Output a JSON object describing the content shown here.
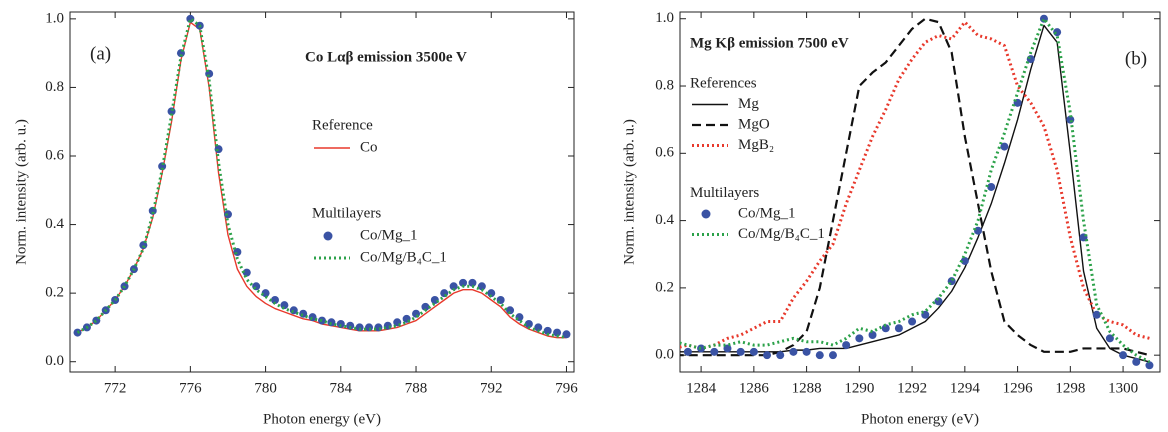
{
  "chart_data": [
    {
      "type": "line",
      "label": "(a)",
      "title": "Co Lαβ emission 3500e V",
      "x_label": "Photon energy (eV)",
      "y_label": "Norm. intensity (arb. u.)",
      "xlim": [
        769.6,
        796.4
      ],
      "ylim": [
        -0.03,
        1.02
      ],
      "xticks": [
        772,
        776,
        780,
        784,
        788,
        792,
        796
      ],
      "yticks": [
        {
          "value": 0,
          "label": "0.0"
        },
        0.2,
        0.4,
        0.6,
        0.8,
        {
          "value": 1,
          "label": "1.0"
        }
      ],
      "x": [
        770,
        770.5,
        771,
        771.5,
        772,
        772.5,
        773,
        773.5,
        774,
        774.5,
        775,
        775.5,
        776,
        776.5,
        777,
        777.5,
        778,
        778.5,
        779,
        779.5,
        780,
        780.5,
        781,
        781.5,
        782,
        782.5,
        783,
        783.5,
        784,
        784.5,
        785,
        785.5,
        786,
        786.5,
        787,
        787.5,
        788,
        788.5,
        789,
        789.5,
        790,
        790.5,
        791,
        791.5,
        792,
        792.5,
        793,
        793.5,
        794,
        794.5,
        795,
        795.5,
        796
      ],
      "series_groups": [
        {
          "name": "Reference",
          "series": [
            {
              "name": "Co",
              "style": "line",
              "color": "#e8392c",
              "values": [
                0.085,
                0.1,
                0.12,
                0.15,
                0.18,
                0.22,
                0.27,
                0.33,
                0.42,
                0.55,
                0.7,
                0.88,
                0.99,
                0.97,
                0.8,
                0.55,
                0.37,
                0.27,
                0.22,
                0.19,
                0.17,
                0.155,
                0.145,
                0.135,
                0.125,
                0.12,
                0.11,
                0.105,
                0.1,
                0.095,
                0.09,
                0.09,
                0.09,
                0.095,
                0.1,
                0.11,
                0.12,
                0.14,
                0.16,
                0.18,
                0.2,
                0.21,
                0.21,
                0.2,
                0.18,
                0.16,
                0.13,
                0.11,
                0.095,
                0.085,
                0.075,
                0.07,
                0.07
              ]
            }
          ]
        },
        {
          "name": "Multilayers",
          "series": [
            {
              "name": "Co/Mg_1",
              "style": "dots",
              "color": "#3a53a4",
              "values": [
                0.085,
                0.1,
                0.12,
                0.15,
                0.18,
                0.22,
                0.27,
                0.34,
                0.44,
                0.57,
                0.73,
                0.9,
                1.0,
                0.98,
                0.84,
                0.62,
                0.43,
                0.32,
                0.26,
                0.22,
                0.2,
                0.18,
                0.165,
                0.15,
                0.14,
                0.13,
                0.12,
                0.115,
                0.11,
                0.105,
                0.1,
                0.1,
                0.1,
                0.105,
                0.115,
                0.125,
                0.14,
                0.16,
                0.18,
                0.2,
                0.22,
                0.23,
                0.23,
                0.22,
                0.2,
                0.18,
                0.15,
                0.13,
                0.11,
                0.1,
                0.09,
                0.085,
                0.08
              ]
            },
            {
              "name": "Co/Mg/B₄C_1",
              "style": "dotted",
              "color": "#2ca24a",
              "values": [
                0.085,
                0.1,
                0.12,
                0.15,
                0.18,
                0.22,
                0.27,
                0.33,
                0.43,
                0.56,
                0.72,
                0.89,
                1.0,
                0.98,
                0.82,
                0.58,
                0.4,
                0.3,
                0.24,
                0.21,
                0.19,
                0.17,
                0.155,
                0.145,
                0.135,
                0.125,
                0.12,
                0.11,
                0.105,
                0.1,
                0.095,
                0.095,
                0.095,
                0.1,
                0.105,
                0.115,
                0.13,
                0.15,
                0.17,
                0.19,
                0.21,
                0.22,
                0.22,
                0.21,
                0.19,
                0.17,
                0.14,
                0.12,
                0.1,
                0.09,
                0.08,
                0.075,
                0.07
              ]
            }
          ]
        }
      ]
    },
    {
      "type": "line",
      "label": "(b)",
      "title": "Mg Kβ emission 7500 eV",
      "x_label": "Photon energy (eV)",
      "y_label": "Norm. intensity (arb. u.)",
      "xlim": [
        1283.2,
        1301.4
      ],
      "ylim": [
        -0.05,
        1.02
      ],
      "xticks": [
        1284,
        1286,
        1288,
        1290,
        1292,
        1294,
        1296,
        1298,
        1300
      ],
      "yticks": [
        {
          "value": 0,
          "label": "0.0"
        },
        0.2,
        0.4,
        0.6,
        0.8,
        {
          "value": 1,
          "label": "1.0"
        }
      ],
      "x": [
        1283,
        1283.5,
        1284,
        1284.5,
        1285,
        1285.5,
        1286,
        1286.5,
        1287,
        1287.5,
        1288,
        1288.5,
        1289,
        1289.5,
        1290,
        1290.5,
        1291,
        1291.5,
        1292,
        1292.5,
        1293,
        1293.5,
        1294,
        1294.5,
        1295,
        1295.5,
        1296,
        1296.5,
        1297,
        1297.5,
        1298,
        1298.5,
        1299,
        1299.5,
        1300,
        1300.5,
        1301
      ],
      "series_groups": [
        {
          "name": "References",
          "series": [
            {
              "name": "Mg",
              "style": "line",
              "color": "#111111",
              "values": [
                0.01,
                0.01,
                0.01,
                0.01,
                0.01,
                0.01,
                0.01,
                0.01,
                0.01,
                0.015,
                0.015,
                0.02,
                0.02,
                0.02,
                0.03,
                0.04,
                0.05,
                0.06,
                0.08,
                0.1,
                0.14,
                0.19,
                0.26,
                0.35,
                0.45,
                0.57,
                0.7,
                0.85,
                0.98,
                0.93,
                0.6,
                0.25,
                0.08,
                0.02,
                0,
                -0.01,
                -0.02
              ]
            },
            {
              "name": "MgO",
              "style": "dashed",
              "color": "#111111",
              "values": [
                0,
                0,
                0,
                0,
                0,
                0,
                0,
                0,
                0.01,
                0.03,
                0.07,
                0.2,
                0.4,
                0.6,
                0.8,
                0.84,
                0.87,
                0.92,
                0.97,
                1.0,
                0.99,
                0.9,
                0.65,
                0.45,
                0.25,
                0.1,
                0.06,
                0.03,
                0.01,
                0.01,
                0.01,
                0.02,
                0.02,
                0.02,
                0.02,
                0.01,
                0
              ]
            },
            {
              "name": "MgB₂",
              "style": "dotted",
              "color": "#e8392c",
              "values": [
                0.02,
                0.03,
                0.02,
                0.03,
                0.05,
                0.06,
                0.08,
                0.1,
                0.1,
                0.17,
                0.22,
                0.28,
                0.33,
                0.45,
                0.55,
                0.65,
                0.73,
                0.82,
                0.88,
                0.93,
                0.95,
                0.94,
                0.99,
                0.95,
                0.94,
                0.92,
                0.8,
                0.75,
                0.68,
                0.55,
                0.35,
                0.2,
                0.12,
                0.1,
                0.09,
                0.06,
                0.05
              ]
            }
          ]
        },
        {
          "name": "Multilayers",
          "series": [
            {
              "name": "Co/Mg_1",
              "style": "dots",
              "color": "#3a53a4",
              "values": [
                0.02,
                0.01,
                0.02,
                0.01,
                0.02,
                0.01,
                0.01,
                0,
                0,
                0.01,
                0.01,
                0,
                0,
                0.03,
                0.05,
                0.06,
                0.08,
                0.08,
                0.1,
                0.12,
                0.16,
                0.22,
                0.28,
                0.37,
                0.5,
                0.62,
                0.75,
                0.88,
                1.0,
                0.96,
                0.7,
                0.35,
                0.12,
                0.05,
                0,
                -0.02,
                -0.03
              ]
            },
            {
              "name": "Co/Mg/B₄C_1",
              "style": "dotted",
              "color": "#2ca24a",
              "values": [
                0.04,
                0.03,
                0.02,
                0.03,
                0.03,
                0.04,
                0.03,
                0.03,
                0.04,
                0.05,
                0.04,
                0.04,
                0.03,
                0.05,
                0.08,
                0.07,
                0.09,
                0.1,
                0.12,
                0.13,
                0.17,
                0.22,
                0.3,
                0.4,
                0.55,
                0.66,
                0.78,
                0.9,
                1.0,
                0.95,
                0.72,
                0.4,
                0.15,
                0.07,
                0.03,
                0,
                -0.02
              ]
            }
          ]
        }
      ]
    }
  ]
}
